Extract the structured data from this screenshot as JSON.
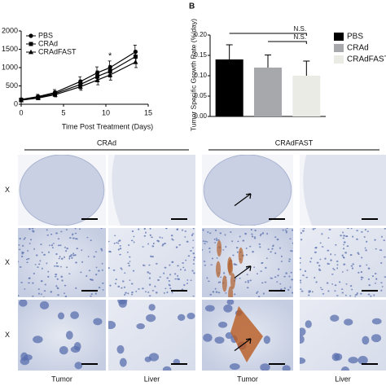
{
  "chart_data": [
    {
      "type": "line",
      "xlabel": "Time Post Treatment (Days)",
      "x": [
        0,
        2,
        4,
        7,
        9,
        10.5,
        13.5
      ],
      "xlim": [
        0,
        15
      ],
      "xticks": [
        0,
        5,
        10,
        15
      ],
      "ylim": [
        0,
        2000
      ],
      "yticks": [
        0,
        500,
        1000,
        1500,
        2000
      ],
      "annotation": "*",
      "series": [
        {
          "name": "PBS",
          "color": "#000000",
          "marker": "circle",
          "values": [
            130,
            210,
            320,
            620,
            860,
            1000,
            1430
          ],
          "errors": [
            40,
            60,
            80,
            130,
            160,
            180,
            180
          ]
        },
        {
          "name": "CRAd",
          "color": "#000000",
          "marker": "square",
          "values": [
            120,
            190,
            290,
            540,
            760,
            900,
            1300
          ],
          "errors": [
            40,
            50,
            70,
            120,
            150,
            160,
            170
          ]
        },
        {
          "name": "CRAdFAST",
          "color": "#000000",
          "marker": "triangle",
          "values": [
            110,
            170,
            260,
            480,
            660,
            800,
            1150
          ],
          "errors": [
            30,
            50,
            60,
            100,
            130,
            140,
            150
          ]
        }
      ]
    },
    {
      "type": "bar",
      "panel_label": "B",
      "ylabel": "Tumor Specific Growth Rate (%/day)",
      "categories": [
        "PBS",
        "CRAd",
        "CRAdFAST"
      ],
      "values": [
        0.14,
        0.12,
        0.1
      ],
      "errors": [
        0.036,
        0.031,
        0.036
      ],
      "colors": [
        "#000000",
        "#a6a8ab",
        "#ebebe6"
      ],
      "ylim": [
        0,
        0.2
      ],
      "yticks": [
        {
          "value": 0,
          "label": "0.00"
        },
        {
          "value": 0.05,
          "label": "0.05"
        },
        {
          "value": 0.1,
          "label": "0.10"
        },
        {
          "value": 0.15,
          "label": "0.15"
        },
        {
          "value": 0.2,
          "label": "0.20"
        }
      ],
      "annotations": [
        "N.S.",
        "N.S."
      ]
    }
  ],
  "histology": {
    "groups": [
      "CRAd",
      "CRAdFAST"
    ],
    "row_labels": [
      "X",
      "X",
      "X"
    ],
    "column_labels": [
      "Tumor",
      "Liver",
      "Tumor",
      "Liver"
    ]
  }
}
